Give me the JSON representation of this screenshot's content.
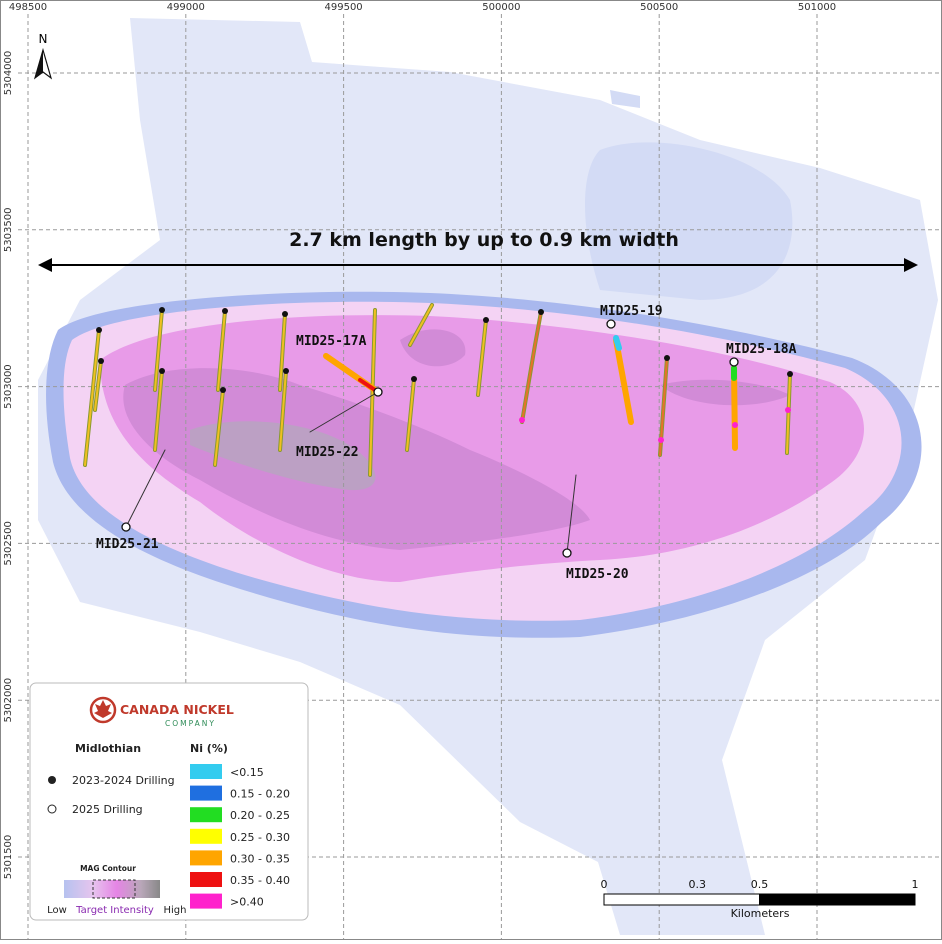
{
  "grid": {
    "eastings": [
      498500,
      499000,
      499500,
      500000,
      500500,
      501000
    ],
    "northings": [
      5304000,
      5303500,
      5303000,
      5302500,
      5302000,
      5301500
    ]
  },
  "north": "N",
  "headline": "2.7 km length by up to 0.9 km width",
  "hole_labels": [
    "MID25-17A",
    "MID25-22",
    "MID25-19",
    "MID25-18A",
    "MID25-21",
    "MID25-20"
  ],
  "legend": {
    "company": "CANADA NICKEL",
    "company_sub": "COMPANY",
    "project": "Midlothian",
    "drilling": [
      "2023-2024 Drilling",
      "2025 Drilling"
    ],
    "ni_title": "Ni (%)",
    "ni_classes": [
      {
        "label": "<0.15",
        "color": "#33ccef"
      },
      {
        "label": "0.15 - 0.20",
        "color": "#1f6fe0"
      },
      {
        "label": "0.20 - 0.25",
        "color": "#22dd22"
      },
      {
        "label": "0.25 - 0.30",
        "color": "#ffff00"
      },
      {
        "label": "0.30 - 0.35",
        "color": "#ffa500"
      },
      {
        "label": "0.35 - 0.40",
        "color": "#ee1111"
      },
      {
        "label": ">0.40",
        "color": "#ff22cc"
      }
    ],
    "mag_title": "MAG Contour",
    "mag_low": "Low",
    "mag_target": "Target Intensity",
    "mag_high": "High"
  },
  "scale_bar": {
    "ticks": [
      0,
      0.3,
      0.5,
      1
    ],
    "unit": "Kilometers"
  }
}
